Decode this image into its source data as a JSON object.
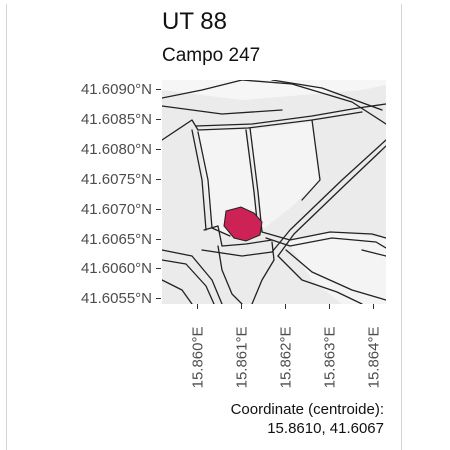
{
  "title": "UT 88",
  "subtitle": "Campo 247",
  "latitude_labels": [
    "41.6090°N",
    "41.6085°N",
    "41.6080°N",
    "41.6075°N",
    "41.6070°N",
    "41.6065°N",
    "41.6060°N",
    "41.6055°N"
  ],
  "longitude_labels": [
    "15.860°E",
    "15.861°E",
    "15.862°E",
    "15.863°E",
    "15.864°E"
  ],
  "caption": {
    "line1": "Coordinate (centroide):",
    "line2": "15.8610, 41.6067"
  },
  "colors": {
    "parcel_fill": "#cc2255",
    "map_background": "#ebebeb",
    "road_stroke": "#222222",
    "label_text": "#4d4d4d"
  }
}
